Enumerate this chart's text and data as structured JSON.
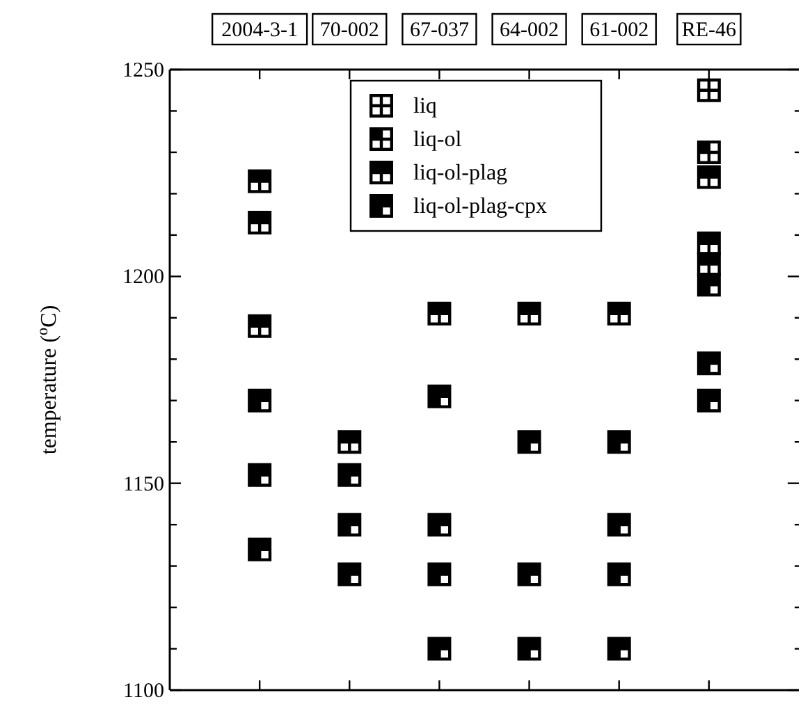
{
  "chart_data": {
    "type": "scatter",
    "ylabel": "temperature ($^{o}$C)",
    "categories": [
      "2004-3-1",
      "70-002",
      "67-037",
      "64-002",
      "61-002",
      "RE-46"
    ],
    "ylim": [
      1100,
      1250
    ],
    "yticks": [
      1100,
      {
        "value": 1110,
        "label": null
      },
      {
        "value": 1120,
        "label": null
      },
      {
        "value": 1130,
        "label": null
      },
      {
        "value": 1140,
        "label": null
      },
      1150,
      {
        "value": 1160,
        "label": null
      },
      {
        "value": 1170,
        "label": null
      },
      {
        "value": 1180,
        "label": null
      },
      {
        "value": 1190,
        "label": null
      },
      1200,
      {
        "value": 1210,
        "label": null
      },
      {
        "value": 1220,
        "label": null
      },
      {
        "value": 1230,
        "label": null
      },
      {
        "value": 1240,
        "label": null
      },
      1250
    ],
    "legend": "top",
    "grid": false,
    "series": [
      {
        "name": "liq",
        "color": "#000000",
        "x": [
          "RE-46"
        ],
        "values": [
          1245
        ]
      },
      {
        "name": "liq-ol",
        "color": "#000000",
        "x": [
          "RE-46"
        ],
        "values": [
          1230
        ]
      },
      {
        "name": "liq-ol-plag",
        "color": "#000000",
        "x": [
          "2004-3-1",
          "2004-3-1",
          "2004-3-1",
          "70-002",
          "67-037",
          "64-002",
          "61-002",
          "RE-46",
          "RE-46",
          "RE-46"
        ],
        "values": [
          1223,
          1213,
          1188,
          1160,
          1191,
          1191,
          1191,
          1224,
          1208,
          1203
        ]
      },
      {
        "name": "liq-ol-plag-cpx",
        "color": "#000000",
        "x": [
          "2004-3-1",
          "2004-3-1",
          "2004-3-1",
          "70-002",
          "70-002",
          "70-002",
          "67-037",
          "67-037",
          "67-037",
          "67-037",
          "64-002",
          "64-002",
          "64-002",
          "61-002",
          "61-002",
          "61-002",
          "61-002",
          "RE-46",
          "RE-46",
          "RE-46"
        ],
        "values": [
          1170,
          1152,
          1134,
          1152,
          1140,
          1128,
          1171,
          1140,
          1128,
          1110,
          1160,
          1128,
          1110,
          1160,
          1140,
          1128,
          1110,
          1198,
          1179,
          1170
        ]
      }
    ]
  }
}
